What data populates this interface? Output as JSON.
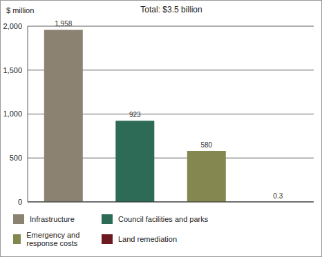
{
  "chart_data": {
    "type": "bar",
    "title": "Total: $3.5 billion",
    "ylabel": "$ million",
    "categories": [
      "Infrastructure",
      "Council facilities and parks",
      "Emergency and response costs",
      "Land remediation"
    ],
    "values": [
      1958,
      923,
      580,
      0.3
    ],
    "value_labels": [
      "1,958",
      "923",
      "580",
      "0.3"
    ],
    "colors": [
      "#8c8272",
      "#2e6b57",
      "#858750",
      "#6b1a1f"
    ],
    "ylim": [
      0,
      2000
    ],
    "yticks": [
      0,
      500,
      {
        "value": 1000,
        "label": "1,000"
      },
      {
        "value": 1500,
        "label": "1,500"
      },
      {
        "value": 2000,
        "label": "2,000"
      }
    ],
    "grid": true,
    "data_labels": true,
    "tick_labels": "y",
    "legend": "bottom"
  }
}
